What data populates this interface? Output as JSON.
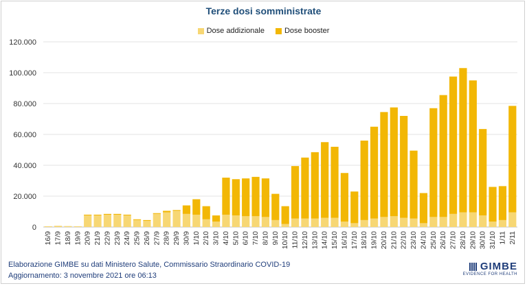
{
  "chart_data": {
    "type": "bar",
    "stacked": true,
    "title": "Terze dosi somministrate",
    "ylim": [
      0,
      120000
    ],
    "yticks": [
      "0",
      "20.000",
      "40.000",
      "60.000",
      "80.000",
      "100.000",
      "120.000"
    ],
    "ytick_values": [
      0,
      20000,
      40000,
      60000,
      80000,
      100000,
      120000
    ],
    "legend_position": "top",
    "categories": [
      "16/9",
      "17/9",
      "18/9",
      "19/9",
      "20/9",
      "21/9",
      "22/9",
      "23/9",
      "24/9",
      "25/9",
      "26/9",
      "27/9",
      "28/9",
      "29/9",
      "30/9",
      "1/10",
      "2/10",
      "3/10",
      "4/10",
      "5/10",
      "6/10",
      "7/10",
      "8/10",
      "9/10",
      "10/10",
      "11/10",
      "12/10",
      "13/10",
      "14/10",
      "15/10",
      "16/10",
      "17/10",
      "18/10",
      "19/10",
      "20/10",
      "21/10",
      "22/10",
      "23/10",
      "24/10",
      "25/10",
      "26/10",
      "27/10",
      "28/10",
      "29/10",
      "30/10",
      "31/10",
      "1/11",
      "2/11"
    ],
    "series": [
      {
        "name": "Dose addizionale",
        "color": "#f7d774",
        "values": [
          500,
          800,
          600,
          500,
          7500,
          7500,
          8000,
          8000,
          7500,
          4500,
          4000,
          8500,
          9500,
          10500,
          8500,
          8000,
          5000,
          3500,
          8000,
          7500,
          7000,
          7000,
          6500,
          4500,
          2000,
          5500,
          5500,
          5500,
          6000,
          6000,
          3500,
          2500,
          4500,
          5500,
          6500,
          7000,
          6000,
          5500,
          2500,
          6500,
          6500,
          8500,
          9500,
          9500,
          7500,
          3500,
          4500,
          9500
        ]
      },
      {
        "name": "Dose booster",
        "color": "#f2b705",
        "values": [
          0,
          0,
          0,
          0,
          500,
          500,
          500,
          500,
          500,
          500,
          500,
          500,
          1000,
          500,
          5500,
          10000,
          8500,
          4000,
          24000,
          23500,
          24500,
          25500,
          25000,
          17000,
          11500,
          34000,
          39500,
          43000,
          49000,
          46000,
          31500,
          20500,
          51500,
          59500,
          68000,
          70500,
          66000,
          44000,
          19500,
          70500,
          79000,
          89000,
          93500,
          85500,
          56000,
          22500,
          22000,
          69000
        ]
      }
    ]
  },
  "footer": {
    "source": "Elaborazione GIMBE su dati Ministero Salute, Commissario Straordinario COVID-19",
    "updated": "Aggiornamento: 3 novembre 2021 ore 06:13"
  },
  "logo": {
    "brand": "GIMBE",
    "tagline": "EVIDENCE FOR HEALTH"
  }
}
